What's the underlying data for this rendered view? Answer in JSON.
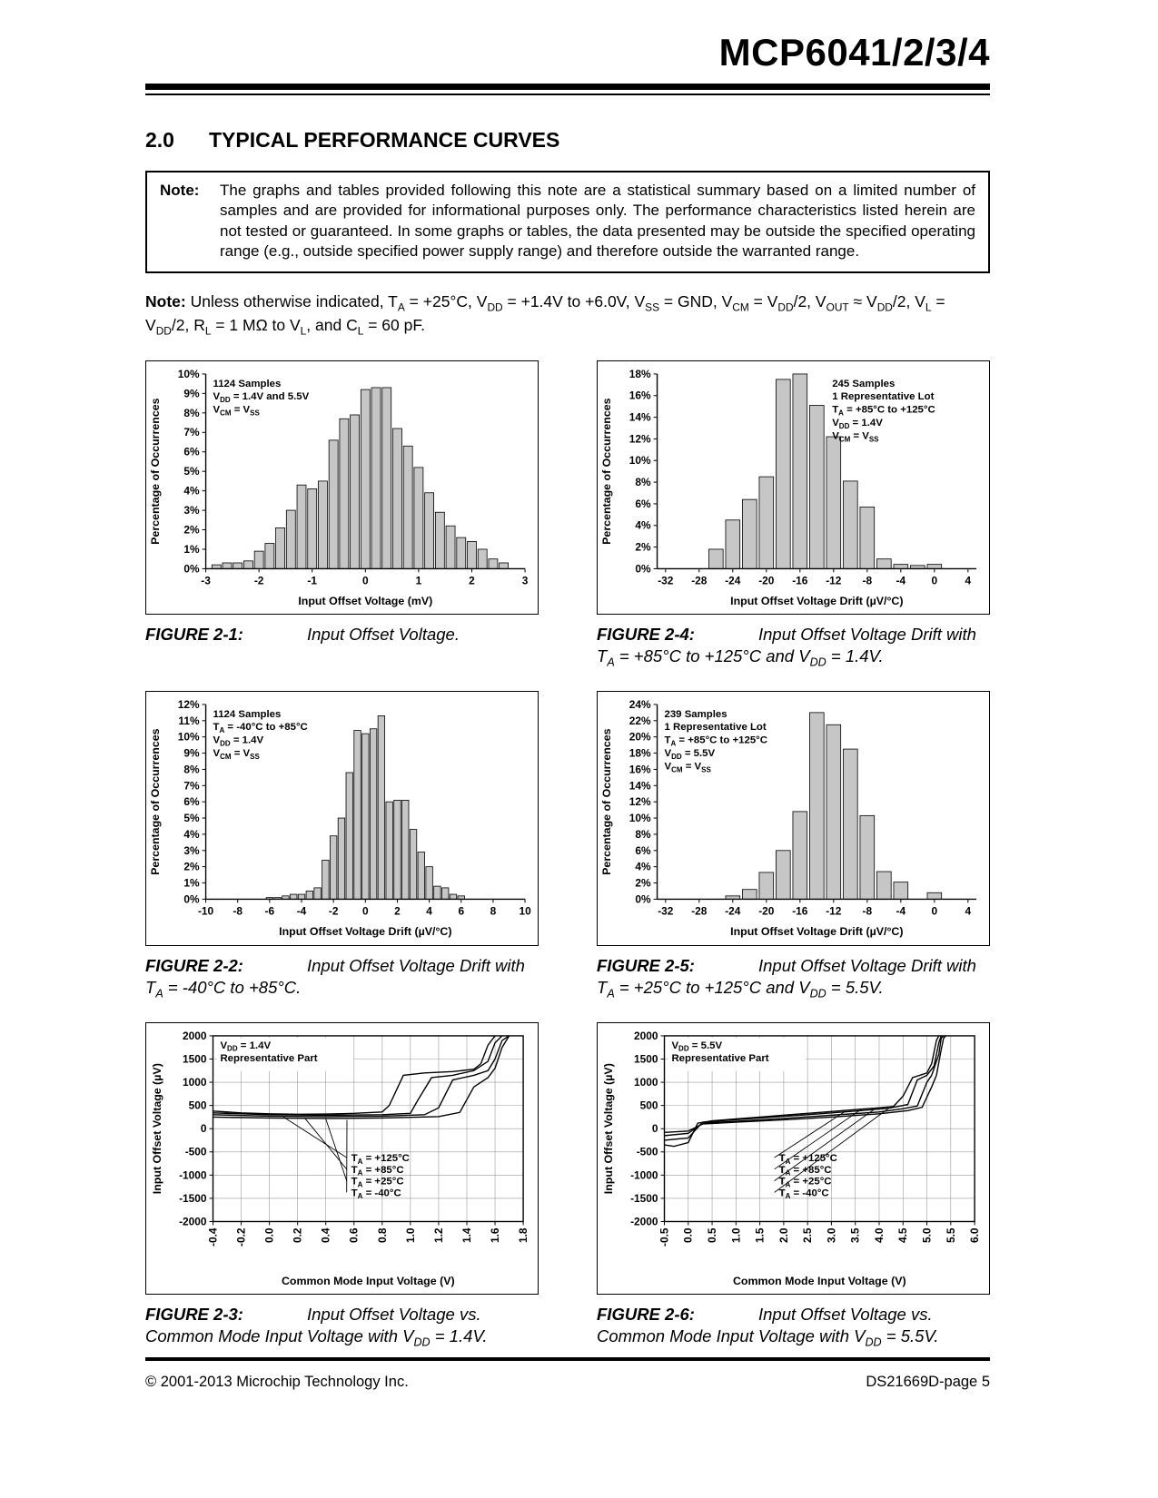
{
  "header": {
    "title": "MCP6041/2/3/4"
  },
  "section": {
    "number": "2.0",
    "title": "TYPICAL PERFORMANCE CURVES"
  },
  "note_box": {
    "label": "Note:",
    "text": "The graphs and tables provided following this note are a statistical summary based on a limited number of samples and are provided for informational purposes only. The performance characteristics listed herein are not tested or guaranteed. In some graphs or tables, the data presented may be outside the specified operating range (e.g., outside specified power supply range) and therefore outside the warranted range."
  },
  "conditions": {
    "label": "Note:",
    "text": "Unless otherwise indicated, T~A~ = +25°C, V~DD~ = +1.4V to +6.0V, V~SS~ = GND, V~CM~ = V~DD~/2, V~OUT~ ≈ V~DD~/2, V~L~ = V~DD~/2, R~L~ = 1 MΩ to V~L~, and C~L~ = 60 pF."
  },
  "figures": [
    {
      "label": "FIGURE 2-1:",
      "caption": "Input Offset Voltage."
    },
    {
      "label": "FIGURE 2-4:",
      "caption": "Input Offset Voltage Drift with T~A~ = +85°C to +125°C and V~DD~ = 1.4V."
    },
    {
      "label": "FIGURE 2-2:",
      "caption": "Input Offset Voltage Drift with T~A~ = -40°C to +85°C."
    },
    {
      "label": "FIGURE 2-5:",
      "caption": "Input Offset Voltage Drift with T~A~ = +25°C to +125°C and V~DD~ = 5.5V."
    },
    {
      "label": "FIGURE 2-3:",
      "caption": "Input Offset Voltage vs. Common Mode Input Voltage with V~DD~ = 1.4V."
    },
    {
      "label": "FIGURE 2-6:",
      "caption": "Input Offset Voltage vs. Common Mode Input Voltage with V~DD~ = 5.5V."
    }
  ],
  "footer": {
    "left": "© 2001-2013 Microchip Technology Inc.",
    "right": "DS21669D-page 5"
  },
  "chart_data": [
    {
      "id": "figure-2-1",
      "type": "bar",
      "xlabel": "Input Offset Voltage (mV)",
      "ylabel": "Percentage of Occurrences",
      "xlim": [
        -3,
        3
      ],
      "ylim": [
        0,
        10
      ],
      "ystep": 1,
      "yfmt": "pct",
      "xticks": [
        -3,
        -2,
        -1,
        0,
        1,
        2,
        3
      ],
      "bin_width": 0.2,
      "bins": [
        -2.8,
        -2.6,
        -2.4,
        -2.2,
        -2.0,
        -1.8,
        -1.6,
        -1.4,
        -1.2,
        -1.0,
        -0.8,
        -0.6,
        -0.4,
        -0.2,
        0.0,
        0.2,
        0.4,
        0.6,
        0.8,
        1.0,
        1.2,
        1.4,
        1.6,
        1.8,
        2.0,
        2.2,
        2.4,
        2.6
      ],
      "values": [
        0.2,
        0.3,
        0.3,
        0.4,
        0.9,
        1.3,
        2.1,
        3.0,
        4.3,
        4.1,
        4.5,
        6.6,
        7.7,
        7.9,
        9.2,
        9.3,
        9.3,
        7.2,
        6.3,
        5.2,
        3.9,
        2.9,
        2.2,
        1.6,
        1.4,
        1.0,
        0.5,
        0.3
      ],
      "annotation": {
        "pos": "left",
        "lines": [
          "1124 Samples",
          "V~DD~ = 1.4V and 5.5V",
          "V~CM~ = V~SS~"
        ]
      }
    },
    {
      "id": "figure-2-4",
      "type": "bar",
      "xlabel": "Input Offset Voltage Drift (µV/°C)",
      "ylabel": "Percentage of Occurrences",
      "xlim": [
        -33,
        5
      ],
      "ylim": [
        0,
        18
      ],
      "ystep": 2,
      "yfmt": "pct",
      "xticks": [
        -32,
        -28,
        -24,
        -20,
        -16,
        -12,
        -8,
        -4,
        0,
        4
      ],
      "bin_width": 2,
      "bins": [
        -26,
        -24,
        -22,
        -20,
        -18,
        -16,
        -14,
        -12,
        -10,
        -8,
        -6,
        -4,
        -2,
        0
      ],
      "values": [
        1.8,
        4.5,
        6.4,
        8.5,
        17.5,
        18.0,
        15.1,
        12.2,
        8.1,
        5.7,
        0.9,
        0.4,
        0.3,
        0.4
      ],
      "annotation": {
        "pos": "right",
        "lines": [
          "245 Samples",
          "1 Representative Lot",
          "T~A~ = +85°C to +125°C",
          "V~DD~ = 1.4V",
          "V~CM~ = V~SS~"
        ]
      }
    },
    {
      "id": "figure-2-2",
      "type": "bar",
      "xlabel": "Input Offset Voltage Drift (µV/°C)",
      "ylabel": "Percentage of Occurrences",
      "xlim": [
        -10,
        10
      ],
      "ylim": [
        0,
        12
      ],
      "ystep": 1,
      "yfmt": "pct",
      "xticks": [
        -10,
        -8,
        -6,
        -4,
        -2,
        0,
        2,
        4,
        6,
        8,
        10
      ],
      "bin_width": 0.5,
      "bins": [
        -6,
        -5.5,
        -5,
        -4.5,
        -4,
        -3.5,
        -3,
        -2.5,
        -2,
        -1.5,
        -1,
        -0.5,
        0,
        0.5,
        1,
        1.5,
        2,
        2.5,
        3,
        3.5,
        4,
        4.5,
        5,
        5.5,
        6
      ],
      "values": [
        0.1,
        0.1,
        0.2,
        0.3,
        0.3,
        0.5,
        0.7,
        2.4,
        3.9,
        5.0,
        7.8,
        10.4,
        10.2,
        10.5,
        11.3,
        6.0,
        6.1,
        6.1,
        4.3,
        2.9,
        2.0,
        0.8,
        0.7,
        0.3,
        0.2
      ],
      "annotation": {
        "pos": "left",
        "lines": [
          "1124 Samples",
          "T~A~ = -40°C to +85°C",
          "V~DD~ = 1.4V",
          "V~CM~ = V~SS~"
        ]
      }
    },
    {
      "id": "figure-2-5",
      "type": "bar",
      "xlabel": "Input Offset Voltage Drift (µV/°C)",
      "ylabel": "Percentage of Occurrences",
      "xlim": [
        -33,
        5
      ],
      "ylim": [
        0,
        24
      ],
      "ystep": 2,
      "yfmt": "pct",
      "xticks": [
        -32,
        -28,
        -24,
        -20,
        -16,
        -12,
        -8,
        -4,
        0,
        4
      ],
      "bin_width": 2,
      "bins": [
        -24,
        -22,
        -20,
        -18,
        -16,
        -14,
        -12,
        -10,
        -8,
        -6,
        -4,
        -2,
        0
      ],
      "values": [
        0.4,
        1.2,
        3.3,
        6.0,
        10.8,
        23.0,
        21.5,
        18.5,
        10.3,
        3.4,
        2.1,
        0,
        0.8
      ],
      "annotation": {
        "pos": "left",
        "lines": [
          "239 Samples",
          "1 Representative Lot",
          "T~A~ = +85°C to +125°C",
          "V~DD~ = 5.5V",
          "V~CM~ = V~SS~"
        ]
      }
    },
    {
      "id": "figure-2-3",
      "type": "line",
      "grid": true,
      "xlabel": "Common Mode Input Voltage (V)",
      "ylabel": "Input Offset Voltage (µV)",
      "xlim": [
        -0.4,
        1.8
      ],
      "ylim": [
        -2000,
        2000
      ],
      "ystep": 500,
      "xticks": [
        -0.4,
        -0.2,
        0,
        0.2,
        0.4,
        0.6,
        0.8,
        1.0,
        1.2,
        1.4,
        1.6,
        1.8
      ],
      "xdec": 1,
      "xtick_rot": true,
      "annotation": {
        "pos": "left",
        "bg": true,
        "lines": [
          "V~DD~ = 1.4V",
          "Representative Part"
        ]
      },
      "series": [
        {
          "label": "T~A~ = +125°C",
          "label_at": [
            0.58,
            -700
          ],
          "leader_to": [
            0.1,
            250
          ],
          "x": [
            -0.4,
            -0.2,
            0,
            0.2,
            0.4,
            0.6,
            0.8,
            0.85,
            0.95,
            1.1,
            1.3,
            1.45,
            1.5,
            1.55,
            1.6
          ],
          "y": [
            380,
            340,
            320,
            310,
            315,
            330,
            360,
            500,
            1150,
            1200,
            1230,
            1280,
            1400,
            1800,
            2000
          ]
        },
        {
          "label": "T~A~ =  +85°C",
          "label_at": [
            0.58,
            -950
          ],
          "leader_to": [
            0.25,
            230
          ],
          "x": [
            -0.4,
            0,
            0.4,
            0.8,
            1.0,
            1.05,
            1.15,
            1.3,
            1.45,
            1.55,
            1.6,
            1.65
          ],
          "y": [
            340,
            300,
            290,
            300,
            330,
            600,
            1100,
            1150,
            1250,
            1450,
            1850,
            2000
          ]
        },
        {
          "label": "T~A~ =  +25°C",
          "label_at": [
            0.58,
            -1200
          ],
          "leader_to": [
            0.4,
            210
          ],
          "x": [
            -0.4,
            0,
            0.4,
            0.8,
            1.1,
            1.2,
            1.3,
            1.45,
            1.55,
            1.6,
            1.65,
            1.7
          ],
          "y": [
            300,
            270,
            260,
            270,
            300,
            450,
            1050,
            1150,
            1250,
            1500,
            1900,
            2000
          ]
        },
        {
          "label": "T~A~ =   -40°C",
          "label_at": [
            0.58,
            -1450
          ],
          "leader_to": [
            0.55,
            190
          ],
          "x": [
            -0.4,
            0,
            0.4,
            0.8,
            1.2,
            1.35,
            1.45,
            1.55,
            1.6,
            1.65,
            1.7
          ],
          "y": [
            250,
            230,
            220,
            230,
            260,
            350,
            900,
            1100,
            1300,
            1750,
            2000
          ]
        }
      ]
    },
    {
      "id": "figure-2-6",
      "type": "line",
      "grid": true,
      "xlabel": "Common Mode Input Voltage (V)",
      "ylabel": "Input Offset Voltage (µV)",
      "xlim": [
        -0.5,
        6.0
      ],
      "ylim": [
        -2000,
        2000
      ],
      "ystep": 500,
      "xticks": [
        -0.5,
        0,
        0.5,
        1.0,
        1.5,
        2.0,
        2.5,
        3.0,
        3.5,
        4.0,
        4.5,
        5.0,
        5.5,
        6.0
      ],
      "xdec": 1,
      "xtick_rot": true,
      "annotation": {
        "pos": "left",
        "bg": true,
        "lines": [
          "V~DD~ = 5.5V",
          "Representative Part"
        ]
      },
      "series": [
        {
          "label": "T~A~ = +125°C",
          "label_at": [
            1.9,
            -700
          ],
          "leader_to": [
            3.3,
            380
          ],
          "x": [
            -0.5,
            -0.3,
            0,
            0.2,
            0.5,
            1,
            1.5,
            2,
            2.5,
            3,
            3.5,
            4,
            4.3,
            4.5,
            4.7,
            5,
            5.1,
            5.2,
            5.25
          ],
          "y": [
            -350,
            -380,
            -300,
            120,
            170,
            210,
            250,
            290,
            330,
            370,
            410,
            450,
            480,
            700,
            1100,
            1200,
            1400,
            1900,
            2000
          ]
        },
        {
          "label": "T~A~ =  +85°C",
          "label_at": [
            1.9,
            -950
          ],
          "leader_to": [
            3.6,
            400
          ],
          "x": [
            -0.5,
            0,
            0.3,
            0.8,
            1.5,
            2.5,
            3.5,
            4.2,
            4.6,
            4.8,
            5,
            5.15,
            5.25,
            5.3
          ],
          "y": [
            -250,
            -200,
            140,
            180,
            230,
            300,
            380,
            440,
            520,
            1050,
            1150,
            1350,
            1850,
            2000
          ]
        },
        {
          "label": "T~A~ =  +25°C",
          "label_at": [
            1.9,
            -1200
          ],
          "leader_to": [
            3.9,
            420
          ],
          "x": [
            -0.5,
            0,
            0.3,
            1,
            2,
            3,
            4,
            4.5,
            4.8,
            5,
            5.1,
            5.25,
            5.3,
            5.35
          ],
          "y": [
            -150,
            -100,
            120,
            160,
            220,
            290,
            360,
            430,
            490,
            1000,
            1150,
            1600,
            1950,
            2000
          ]
        },
        {
          "label": "T~A~ =   -40°C",
          "label_at": [
            1.9,
            -1450
          ],
          "leader_to": [
            4.2,
            440
          ],
          "x": [
            -0.5,
            0,
            0.3,
            1,
            2,
            3,
            4,
            4.6,
            4.9,
            5.1,
            5.2,
            5.3,
            5.35,
            5.4
          ],
          "y": [
            -80,
            -50,
            100,
            140,
            190,
            250,
            320,
            390,
            460,
            900,
            1150,
            1700,
            1950,
            2000
          ]
        }
      ]
    }
  ]
}
